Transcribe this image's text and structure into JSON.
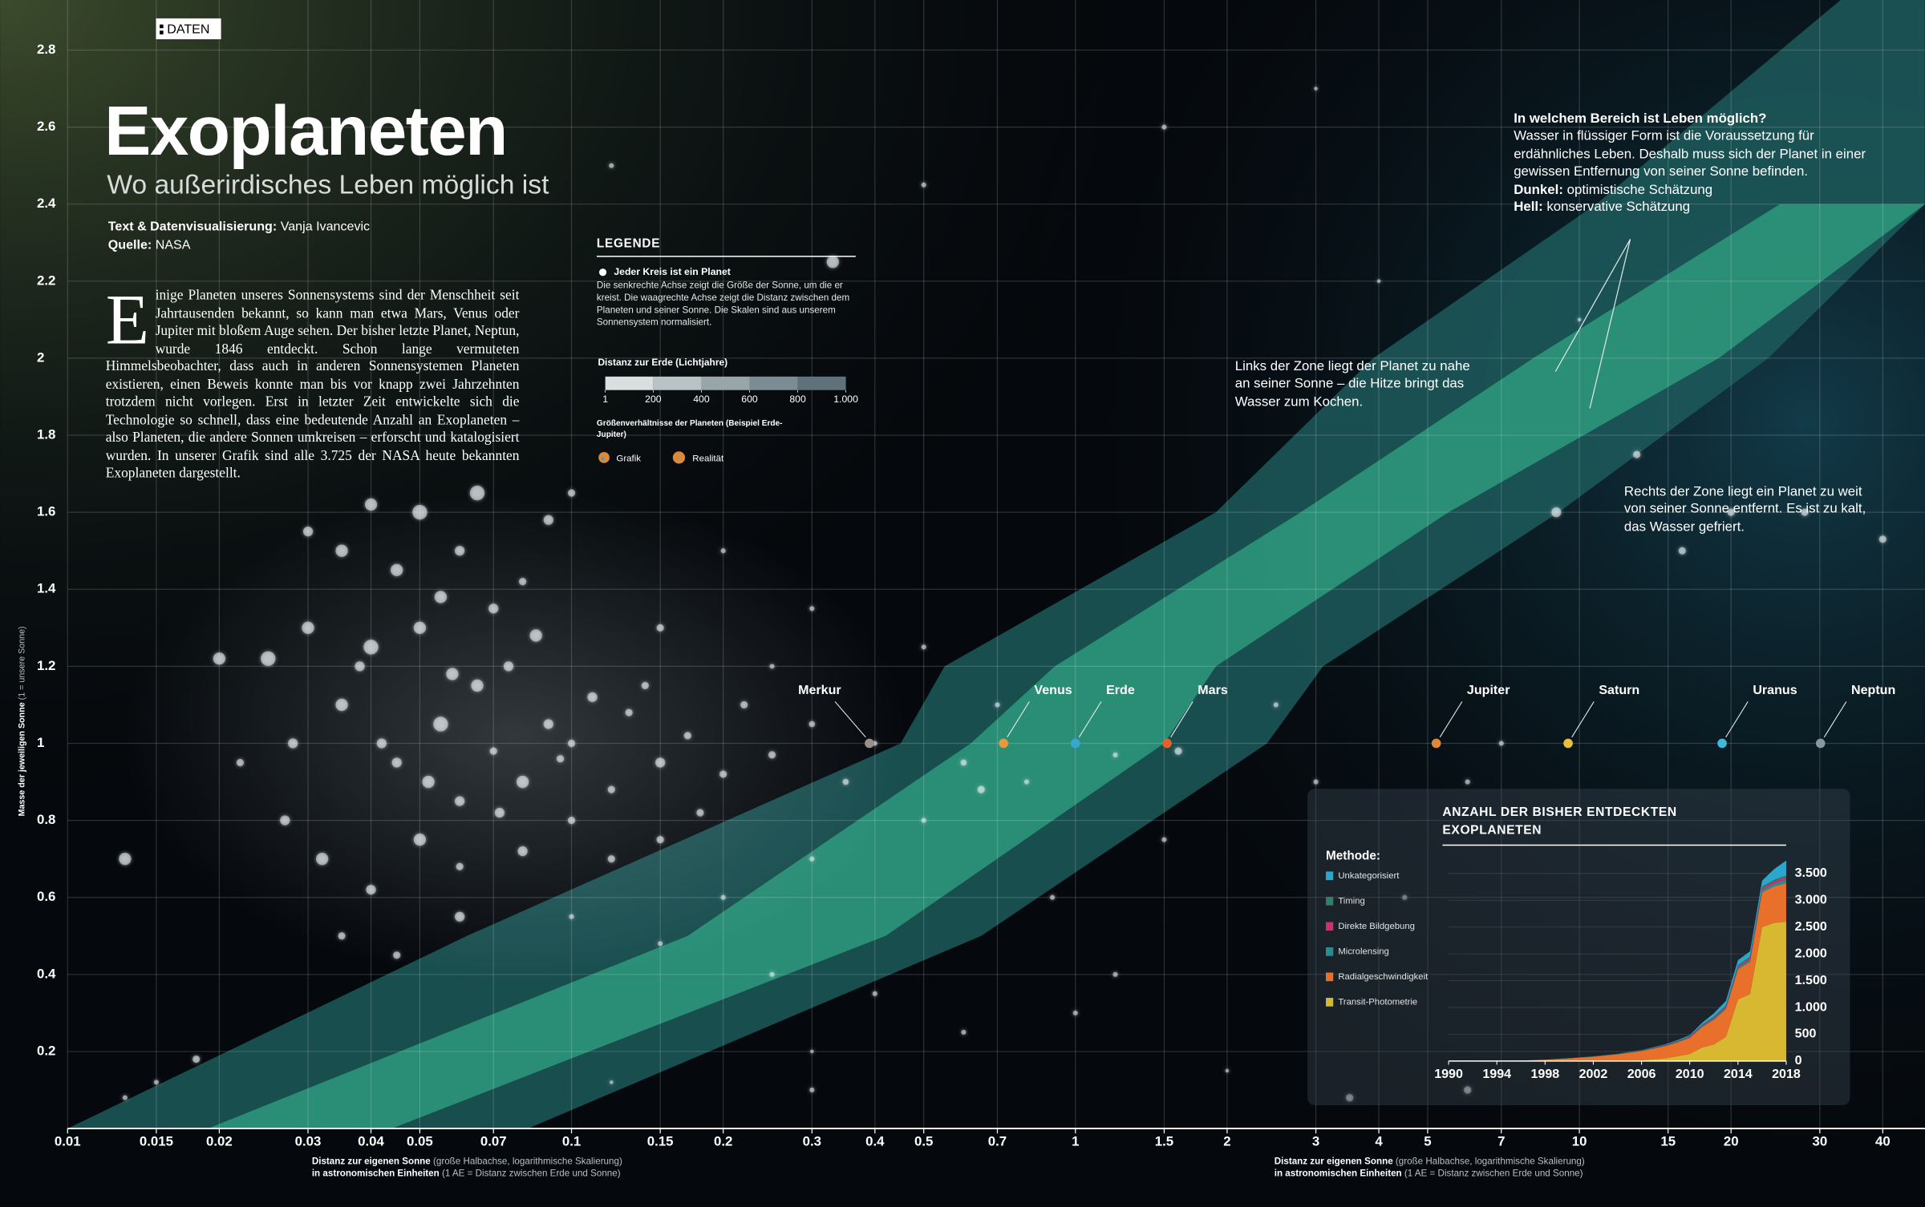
{
  "chart_data": [
    {
      "type": "scatter",
      "badge": "DATEN",
      "title": "Exoplaneten",
      "subtitle": "Wo außerirdisches Leben möglich ist",
      "credits": [
        {
          "label": "Text & Datenvisualisierung:",
          "text": "Vanja Ivancevic"
        },
        {
          "label": "Quelle:",
          "text": "NASA"
        }
      ],
      "intro": {
        "initial": "E",
        "text": "inige Planeten unseres Sonnensystems sind der Menschheit seit Jahrtausenden bekannt, so kann man etwa Mars, Venus oder Jupiter mit bloßem Auge sehen. Der bisher letzte Planet, Neptun, wurde 1846 entdeckt. Schon lange vermuteten Himmelsbeobachter, dass auch in anderen Sonnensystemen Planeten existieren, einen Beweis konnte man bis vor knapp zwei Jahrzehnten trotzdem nicht vorlegen. Erst in letzter Zeit entwickelte sich die Technologie so schnell, dass eine bedeutende Anzahl an Exoplaneten – also Planeten, die andere Sonnen umkreisen – erforscht und katalogisiert wurden. In unserer Grafik sind alle 3.725 der NASA heute bekannten Exoplaneten dargestellt."
      },
      "legend": {
        "title": "LEGENDE",
        "item": "Jeder Kreis ist ein Planet",
        "description": "Die senkrechte Achse zeigt die Größe der Sonne, um die er kreist. Die waagrechte Achse zeigt die Distanz zwischen dem Planeten und seiner Sonne. Die Skalen sind aus unserem Sonnensystem normalisiert.",
        "color_title": "Distanz zur Erde (Lichtjahre)",
        "color_ticks": [
          1,
          200,
          400,
          600,
          800,
          {
            "value": 1000,
            "label": "1.000"
          }
        ],
        "colors": [
          "#d9dedf",
          "#b9c3c5",
          "#98a6aa",
          "#7b8c92",
          "#5f7279"
        ],
        "size_title": "Größenverhältnisse der Planeten (Beispiel Erde-Jupiter)",
        "size_items": [
          "Grafik",
          "Realität"
        ]
      },
      "annotations": {
        "zone": {
          "title": "In welchem Bereich ist Leben möglich?",
          "text": "Wasser in flüssiger Form ist die Voraussetzung für erdähnliches Leben. Deshalb muss sich der Planet in einer gewissen Entfernung von seiner Sonne befinden.",
          "dark_label": "Dunkel:",
          "dark_text": "optimistische Schätzung",
          "light_label": "Hell:",
          "light_text": "konservative Schätzung"
        },
        "left": "Links der Zone liegt der Planet zu nahe an seiner Sonne – die Hitze bringt das Wasser zum Kochen.",
        "right": "Rechts der Zone liegt ein Planet zu weit von seiner Sonne entfernt. Es ist zu kalt, das Wasser gefriert."
      },
      "xlabel": {
        "title": "Distanz zur eigenen Sonne",
        "title_note": "(große Halbachse, logarithmische Skalierung)",
        "unit": "in astronomischen Einheiten",
        "unit_note": "(1 AE = Distanz zwischen Erde und Sonne)"
      },
      "ylabel": {
        "title": "Masse der jeweiligen Sonne",
        "note": "(1 = unsere Sonne)"
      },
      "log_x": true,
      "grid": true,
      "xlim": [
        0.01,
        48.5
      ],
      "ylim": [
        0,
        2.93
      ],
      "xticks": [
        0.01,
        0.015,
        0.02,
        0.03,
        0.04,
        0.05,
        0.07,
        0.1,
        0.15,
        0.2,
        0.3,
        0.4,
        0.5,
        0.7,
        1,
        1.5,
        2,
        3,
        4,
        5,
        7,
        10,
        15,
        20,
        30,
        40
      ],
      "yticks": [
        0.2,
        0.4,
        0.6,
        0.8,
        1,
        1.2,
        1.4,
        1.6,
        1.8,
        2,
        2.2,
        2.4,
        2.6,
        2.8
      ],
      "series": [
        {
          "color": "#e6edf0",
          "x": [
            0.035,
            0.04,
            0.045,
            0.05,
            0.055,
            0.06,
            0.065,
            0.07,
            0.075,
            0.08,
            0.09,
            0.1,
            0.11,
            0.12,
            0.13,
            0.15,
            0.17,
            0.2,
            0.22,
            0.25,
            0.3,
            0.35,
            0.4,
            0.045,
            0.05,
            0.055,
            0.06,
            0.07,
            0.08,
            0.09,
            0.035,
            0.03,
            0.028,
            0.025,
            0.022,
            0.027,
            0.032,
            0.04,
            0.05,
            0.06,
            0.08,
            0.1,
            0.12,
            0.15,
            0.18,
            0.035,
            0.045,
            0.06,
            0.1,
            0.15,
            0.2,
            0.3,
            0.25,
            0.5,
            0.6,
            0.7,
            0.8,
            1.2,
            1.6,
            2.5,
            3,
            1.5,
            0.9,
            0.4,
            0.6,
            0.3,
            0.02,
            0.018,
            0.015,
            0.013,
            0.03,
            0.04,
            0.065,
            0.1,
            0.2,
            0.3,
            0.15,
            0.5,
            0.25,
            0.33,
            0.12,
            0.5,
            1.5,
            3,
            4,
            9,
            13,
            20,
            28,
            40,
            16,
            3.5,
            6,
            0.013,
            4.5,
            6,
            7,
            2,
            10,
            1,
            0.12,
            0.3,
            0.65,
            1.2,
            0.042,
            0.058,
            0.072,
            0.085,
            0.095,
            0.14,
            0.038,
            0.052
          ],
          "values": [
            1.1,
            1.25,
            0.95,
            1.3,
            1.05,
            0.85,
            1.15,
            0.98,
            1.2,
            0.9,
            1.05,
            1.0,
            1.12,
            0.88,
            1.08,
            0.95,
            1.02,
            0.92,
            1.1,
            0.97,
            1.05,
            0.9,
            1.0,
            1.45,
            1.6,
            1.38,
            1.5,
            1.35,
            1.42,
            1.58,
            1.5,
            1.3,
            1.0,
            1.22,
            0.95,
            0.8,
            0.7,
            0.62,
            0.75,
            0.68,
            0.72,
            0.8,
            0.7,
            0.75,
            0.82,
            0.5,
            0.45,
            0.55,
            0.55,
            0.48,
            0.6,
            0.7,
            0.4,
            0.8,
            0.95,
            1.1,
            0.9,
            0.97,
            0.98,
            1.1,
            0.9,
            0.75,
            0.6,
            0.35,
            0.25,
            0.2,
            1.22,
            0.18,
            0.12,
            0.7,
            1.55,
            1.62,
            1.65,
            1.65,
            1.5,
            1.35,
            1.3,
            1.25,
            1.2,
            2.25,
            2.5,
            2.45,
            2.6,
            2.7,
            2.2,
            1.6,
            1.75,
            1.6,
            1.6,
            1.53,
            1.5,
            0.08,
            0.1,
            0.08,
            0.6,
            0.9,
            1.0,
            0.15,
            2.1,
            0.3,
            0.12,
            0.1,
            0.88,
            0.4,
            1.0,
            1.18,
            0.82,
            1.28,
            0.96,
            1.15,
            1.2,
            0.9
          ],
          "sizes": [
            5,
            6,
            4,
            5,
            6,
            4,
            5,
            3,
            4,
            5,
            4,
            3,
            4,
            3,
            3,
            4,
            3,
            3,
            3,
            3,
            2.5,
            2.5,
            2,
            5,
            6,
            5,
            4,
            4,
            3,
            4,
            5,
            5,
            4,
            6,
            3,
            4,
            5,
            4,
            5,
            3,
            4,
            3,
            3,
            3,
            3,
            3,
            3,
            4,
            2,
            2,
            2,
            2,
            2,
            2,
            2.5,
            2,
            2,
            2,
            3,
            2,
            2,
            2,
            2,
            2,
            2,
            1.5,
            5,
            3,
            2,
            5,
            4,
            5,
            6,
            3,
            2,
            2,
            3,
            2,
            2,
            5,
            2,
            2,
            2,
            1.5,
            1.5,
            4,
            3,
            3,
            3,
            3,
            3,
            3,
            3,
            2,
            2,
            2,
            2,
            1.5,
            1.5,
            2,
            1.5,
            2,
            3,
            2,
            4,
            5,
            4,
            5,
            3,
            3,
            4,
            5
          ]
        }
      ],
      "planets": {
        "labels": [
          "Merkur",
          "Venus",
          "Erde",
          "Mars",
          "Jupiter",
          "Saturn",
          "Uranus",
          "Neptun"
        ],
        "x": [
          0.39,
          0.72,
          1,
          1.52,
          5.2,
          9.5,
          19.2,
          30.1
        ],
        "values": [
          1,
          1,
          1,
          1,
          1,
          1,
          1,
          1
        ],
        "colors": [
          "#9a8f8a",
          "#e89a3a",
          "#3aa6d0",
          "#e0602e",
          "#e0883a",
          "#e6c23c",
          "#3fb8dc",
          "#8a96a4"
        ]
      },
      "bands": [
        {
          "color": "#1d5a5c",
          "y": [
            0,
            0.5,
            1,
            1.2,
            1.6,
            2.0,
            2.4,
            2.93
          ],
          "x_low": [
            0.01,
            0.062,
            0.45,
            0.55,
            1.9,
            3.9,
            10.8,
            33
          ],
          "x_high": [
            0.082,
            0.65,
            2.4,
            3.1,
            9.1,
            23.7,
            48.5,
            48.5
          ]
        },
        {
          "color": "#2e9a7c",
          "y": [
            0,
            0.5,
            1,
            1.2,
            1.6,
            2.0,
            2.4
          ],
          "x_low": [
            0.019,
            0.17,
            0.62,
            0.91,
            2.8,
            8.1,
            25
          ],
          "x_high": [
            0.044,
            0.42,
            1.5,
            1.9,
            5.5,
            18.9,
            48.5
          ]
        }
      ]
    },
    {
      "type": "area",
      "title": "ANZAHL DER BISHER ENTDECKTEN EXOPLANETEN",
      "legend_title": "Methode:",
      "stacked": true,
      "x": [
        1990,
        1992,
        1994,
        1996,
        1998,
        2000,
        2002,
        2004,
        2006,
        2008,
        2009,
        2010,
        2011,
        2012,
        2013,
        2014,
        2015,
        2016,
        2017,
        2018
      ],
      "xlim": [
        1990,
        2018
      ],
      "xticks": [
        1990,
        1994,
        1998,
        2002,
        2006,
        2010,
        2014,
        2018
      ],
      "ylim": [
        0,
        3800
      ],
      "yticks": [
        0,
        500,
        {
          "value": 1000,
          "label": "1.000"
        },
        {
          "value": 1500,
          "label": "1.500"
        },
        {
          "value": 2000,
          "label": "2.000"
        },
        {
          "value": 2500,
          "label": "2.500"
        },
        {
          "value": 3000,
          "label": "3.000"
        },
        {
          "value": 3500,
          "label": "3.500"
        }
      ],
      "series": [
        {
          "name": "Unkategorisiert",
          "color": "#2aa8cc",
          "values": [
            0,
            0,
            0,
            0,
            0,
            1,
            2,
            3,
            5,
            8,
            10,
            15,
            30,
            60,
            80,
            90,
            100,
            110,
            200,
            280
          ]
        },
        {
          "name": "Timing",
          "color": "#2f7f6c",
          "values": [
            0,
            1,
            2,
            2,
            2,
            3,
            4,
            5,
            6,
            8,
            10,
            12,
            14,
            15,
            16,
            17,
            18,
            20,
            22,
            24
          ]
        },
        {
          "name": "Direkte Bildgebung",
          "color": "#c8336e",
          "values": [
            0,
            0,
            0,
            0,
            0,
            0,
            0,
            2,
            4,
            10,
            12,
            15,
            20,
            25,
            30,
            35,
            40,
            42,
            45,
            48
          ]
        },
        {
          "name": "Microlensing",
          "color": "#2a8c8e",
          "values": [
            0,
            0,
            0,
            0,
            0,
            0,
            0,
            2,
            6,
            8,
            10,
            12,
            15,
            20,
            25,
            30,
            40,
            45,
            55,
            70
          ]
        },
        {
          "name": "Radialgeschwindigkeit",
          "color": "#e8702a",
          "values": [
            0,
            1,
            3,
            8,
            25,
            50,
            80,
            120,
            170,
            230,
            260,
            300,
            380,
            460,
            520,
            560,
            600,
            650,
            680,
            720
          ]
        },
        {
          "name": "Transit-Photometrie",
          "color": "#d8b830",
          "values": [
            0,
            0,
            0,
            0,
            0,
            0,
            1,
            5,
            15,
            50,
            90,
            130,
            250,
            310,
            450,
            1150,
            1250,
            2500,
            2580,
            2600
          ]
        }
      ]
    }
  ]
}
